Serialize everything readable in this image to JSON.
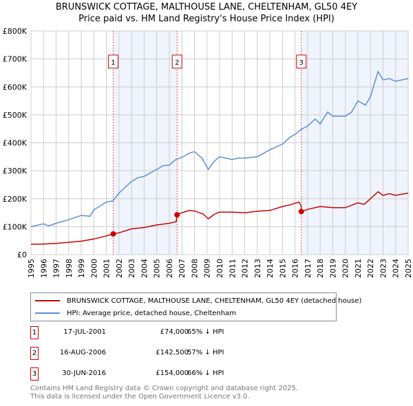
{
  "chart_data": {
    "type": "line",
    "title": "BRUNSWICK COTTAGE, MALTHOUSE LANE, CHELTENHAM, GL50 4EY",
    "subtitle": "Price paid vs. HM Land Registry's House Price Index (HPI)",
    "xlim": [
      1995,
      2025
    ],
    "ylim": [
      0,
      800000
    ],
    "x_ticks": [
      "1995",
      "1996",
      "1997",
      "1998",
      "1999",
      "2000",
      "2001",
      "2002",
      "2003",
      "2004",
      "2005",
      "2006",
      "2007",
      "2008",
      "2009",
      "2010",
      "2011",
      "2012",
      "2013",
      "2014",
      "2015",
      "2016",
      "2017",
      "2018",
      "2019",
      "2020",
      "2021",
      "2022",
      "2023",
      "2024",
      "2025"
    ],
    "y_ticks": [
      {
        "v": 0,
        "label": "£0"
      },
      {
        "v": 100000,
        "label": "£100K"
      },
      {
        "v": 200000,
        "label": "£200K"
      },
      {
        "v": 300000,
        "label": "£300K"
      },
      {
        "v": 400000,
        "label": "£400K"
      },
      {
        "v": 500000,
        "label": "£500K"
      },
      {
        "v": 600000,
        "label": "£600K"
      },
      {
        "v": 700000,
        "label": "£700K"
      },
      {
        "v": 800000,
        "label": "£800K"
      }
    ],
    "grid": true,
    "series": [
      {
        "name": "BRUNSWICK COTTAGE, MALTHOUSE LANE, CHELTENHAM, GL50 4EY (detached house)",
        "color": "#cc0000",
        "points": [
          [
            1995,
            37000
          ],
          [
            1996,
            38000
          ],
          [
            1997,
            40000
          ],
          [
            1998,
            44000
          ],
          [
            1999,
            48000
          ],
          [
            2000,
            56000
          ],
          [
            2001,
            67000
          ],
          [
            2001.54,
            74000
          ],
          [
            2002,
            78000
          ],
          [
            2003,
            92000
          ],
          [
            2004,
            97000
          ],
          [
            2005,
            106000
          ],
          [
            2006,
            112000
          ],
          [
            2006.55,
            118000
          ],
          [
            2006.62,
            142500
          ],
          [
            2007,
            150000
          ],
          [
            2007.6,
            158000
          ],
          [
            2008,
            156000
          ],
          [
            2008.7,
            145000
          ],
          [
            2009.1,
            128000
          ],
          [
            2009.6,
            145000
          ],
          [
            2010,
            152000
          ],
          [
            2011,
            152000
          ],
          [
            2012,
            150000
          ],
          [
            2013,
            155000
          ],
          [
            2014,
            158000
          ],
          [
            2015,
            172000
          ],
          [
            2015.6,
            178000
          ],
          [
            2016.3,
            188000
          ],
          [
            2016.48,
            175000
          ],
          [
            2016.5,
            154000
          ],
          [
            2017,
            162000
          ],
          [
            2018,
            172000
          ],
          [
            2019,
            168000
          ],
          [
            2020,
            168000
          ],
          [
            2021,
            185000
          ],
          [
            2021.5,
            180000
          ],
          [
            2022,
            200000
          ],
          [
            2022.6,
            225000
          ],
          [
            2023,
            212000
          ],
          [
            2023.5,
            218000
          ],
          [
            2024,
            212000
          ],
          [
            2025,
            220000
          ]
        ]
      },
      {
        "name": "HPI: Average price, detached house, Cheltenham",
        "color": "#5b8fd6",
        "points": [
          [
            1995,
            100000
          ],
          [
            1996,
            110000
          ],
          [
            1996.4,
            103000
          ],
          [
            1997,
            112000
          ],
          [
            1998,
            125000
          ],
          [
            1999,
            140000
          ],
          [
            1999.7,
            137000
          ],
          [
            2000,
            160000
          ],
          [
            2001,
            188000
          ],
          [
            2001.5,
            192000
          ],
          [
            2002,
            220000
          ],
          [
            2003,
            262000
          ],
          [
            2003.5,
            275000
          ],
          [
            2004,
            280000
          ],
          [
            2005,
            305000
          ],
          [
            2005.5,
            318000
          ],
          [
            2006,
            320000
          ],
          [
            2006.5,
            340000
          ],
          [
            2007,
            348000
          ],
          [
            2007.7,
            365000
          ],
          [
            2008,
            368000
          ],
          [
            2008.6,
            345000
          ],
          [
            2009.1,
            305000
          ],
          [
            2009.6,
            335000
          ],
          [
            2010,
            350000
          ],
          [
            2011,
            340000
          ],
          [
            2011.5,
            345000
          ],
          [
            2012,
            345000
          ],
          [
            2013,
            350000
          ],
          [
            2014,
            375000
          ],
          [
            2015,
            395000
          ],
          [
            2015.6,
            420000
          ],
          [
            2016,
            430000
          ],
          [
            2016.5,
            448000
          ],
          [
            2017,
            460000
          ],
          [
            2017.6,
            485000
          ],
          [
            2018,
            468000
          ],
          [
            2018.6,
            510000
          ],
          [
            2019,
            495000
          ],
          [
            2020,
            495000
          ],
          [
            2020.5,
            510000
          ],
          [
            2021,
            550000
          ],
          [
            2021.6,
            535000
          ],
          [
            2022,
            565000
          ],
          [
            2022.6,
            655000
          ],
          [
            2023,
            625000
          ],
          [
            2023.5,
            630000
          ],
          [
            2024,
            620000
          ],
          [
            2025,
            630000
          ]
        ]
      }
    ],
    "sales": [
      {
        "label": "1",
        "x": 2001.54,
        "value": 74000,
        "date": "17-JUL-2001",
        "price": "£74,000",
        "hpi": "65% ↓ HPI"
      },
      {
        "label": "2",
        "x": 2006.62,
        "value": 142500,
        "date": "16-AUG-2006",
        "price": "£142,500",
        "hpi": "57% ↓ HPI"
      },
      {
        "label": "3",
        "x": 2016.5,
        "value": 154000,
        "date": "30-JUN-2016",
        "price": "£154,000",
        "hpi": "66% ↓ HPI"
      }
    ],
    "shaded_ranges": [
      [
        2001.54,
        2006.62
      ],
      [
        2016.5,
        2025
      ]
    ],
    "legend_position": "below"
  },
  "footer": {
    "line1": "Contains HM Land Registry data © Crown copyright and database right 2025.",
    "line2": "This data is licensed under the Open Government Licence v3.0."
  }
}
